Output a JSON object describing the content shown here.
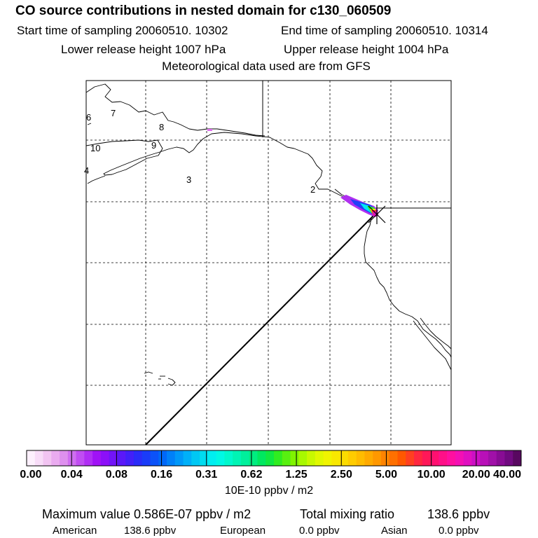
{
  "header": {
    "title": "CO  source contributions in nested domain for c130_060509",
    "start_time": "Start time of sampling 20060510. 10302",
    "end_time": "End time of sampling 20060510. 10314",
    "lower_height": "Lower release height 1007 hPa",
    "upper_height": "Upper release height 1004 hPa",
    "met_data": "Meteorological data used are from GFS"
  },
  "map": {
    "region_numbers": [
      "6",
      "7",
      "8",
      "10",
      "9",
      "4",
      "3",
      "2"
    ],
    "grid_style": "dashed",
    "source_marker": "×"
  },
  "colorbar": {
    "tick_labels": [
      "0.00",
      "0.04",
      "0.08",
      "0.16",
      "0.31",
      "0.62",
      "1.25",
      "2.50",
      "5.00",
      "10.00",
      "20.00",
      "40.00"
    ],
    "units": "10E-10 ppbv / m2",
    "colors": [
      "#fdf0fd",
      "#f8dcf8",
      "#f2c4f2",
      "#eaabf0",
      "#de90ee",
      "#cf6ef0",
      "#c04df2",
      "#b02ef4",
      "#a012f6",
      "#8c10f8",
      "#7214f8",
      "#5a18f8",
      "#4220f8",
      "#2a2cf8",
      "#1a3cf8",
      "#0c52f8",
      "#0068f8",
      "#0080f8",
      "#0098f8",
      "#00b0f8",
      "#00c8f4",
      "#00dcf0",
      "#00eef0",
      "#00f8e4",
      "#00f8cc",
      "#00f4b4",
      "#00f09c",
      "#00ec80",
      "#00e860",
      "#10e840",
      "#30ec20",
      "#58f010",
      "#80f400",
      "#a8f800",
      "#c8f800",
      "#e0f800",
      "#f0f400",
      "#f8e800",
      "#fcdc00",
      "#ffcc00",
      "#ffbc00",
      "#ffaa00",
      "#ff9800",
      "#ff8400",
      "#ff7000",
      "#ff5800",
      "#ff4020",
      "#ff2840",
      "#ff1858",
      "#ff1070",
      "#ff1088",
      "#ff10a0",
      "#f410b4",
      "#e010c0",
      "#cc10c4",
      "#b810b8",
      "#a010a8",
      "#880c94",
      "#700a80",
      "#580860"
    ]
  },
  "stats": {
    "max_value": "Maximum value  0.586E-07 ppbv / m2",
    "total_label": "Total mixing ratio",
    "total_value": "138.6 ppbv"
  },
  "regions": [
    {
      "name": "American",
      "value": "138.6 ppbv"
    },
    {
      "name": "European",
      "value": "0.0 ppbv"
    },
    {
      "name": "Asian",
      "value": "0.0 ppbv"
    }
  ]
}
